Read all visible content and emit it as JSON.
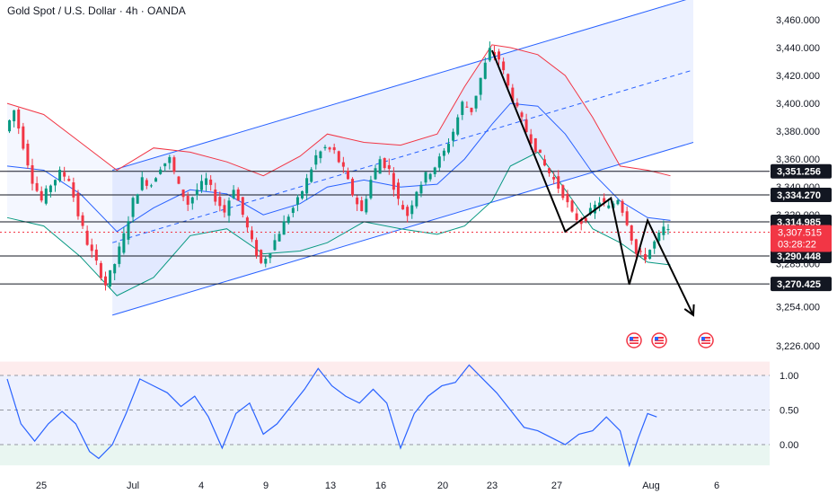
{
  "header": {
    "title": "Gold Spot / U.S. Dollar · 4h · OANDA"
  },
  "colors": {
    "up": "#089981",
    "down": "#f23645",
    "channel": "#2962ff",
    "upper_band": "#f23645",
    "basis": "#2962ff",
    "lower_band": "#089981",
    "oscillator": "#2962ff",
    "projection": "#000000"
  },
  "chart_data": [
    {
      "type": "candlestick",
      "title": "Gold Spot / U.S. Dollar · 4h · OANDA",
      "xlabel": "",
      "ylabel": "",
      "ylim": [
        3226,
        3470
      ],
      "x_tick_labels": [
        "25",
        "Jul",
        "4",
        "9",
        "13",
        "16",
        "20",
        "23",
        "27",
        "Aug",
        "6"
      ],
      "y_tick_labels": [
        "3,460.000",
        "3,440.000",
        "3,420.000",
        "3,400.000",
        "3,380.000",
        "3,360.000",
        "3,340.000",
        "3,320.000",
        "3,285.000",
        "3,254.000",
        "3,226.000"
      ],
      "y_ticks": [
        3460,
        3440,
        3420,
        3400,
        3380,
        3360,
        3340,
        3320,
        3285,
        3254,
        3226
      ],
      "price_levels": [
        {
          "label": "3,351.256",
          "value": 3351.256
        },
        {
          "label": "3,334.270",
          "value": 3334.27
        },
        {
          "label": "3,314.985",
          "value": 3314.985
        },
        {
          "label": "3,290.448",
          "value": 3290.448
        },
        {
          "label": "3,270.425",
          "value": 3270.425
        }
      ],
      "last_price": {
        "label": "3,307.515",
        "value": 3307.515,
        "countdown": "03:28:22"
      },
      "close_path": [
        [
          0,
          3380
        ],
        [
          4,
          3395
        ],
        [
          8,
          3370
        ],
        [
          12,
          3345
        ],
        [
          16,
          3330
        ],
        [
          20,
          3342
        ],
        [
          24,
          3350
        ],
        [
          28,
          3346
        ],
        [
          32,
          3320
        ],
        [
          36,
          3300
        ],
        [
          40,
          3285
        ],
        [
          44,
          3270
        ],
        [
          48,
          3285
        ],
        [
          52,
          3305
        ],
        [
          56,
          3330
        ],
        [
          60,
          3345
        ],
        [
          64,
          3342
        ],
        [
          68,
          3355
        ],
        [
          72,
          3360
        ],
        [
          76,
          3340
        ],
        [
          80,
          3328
        ],
        [
          84,
          3338
        ],
        [
          88,
          3345
        ],
        [
          92,
          3332
        ],
        [
          96,
          3322
        ],
        [
          100,
          3340
        ],
        [
          104,
          3320
        ],
        [
          108,
          3300
        ],
        [
          112,
          3285
        ],
        [
          116,
          3295
        ],
        [
          120,
          3308
        ],
        [
          124,
          3320
        ],
        [
          128,
          3330
        ],
        [
          132,
          3345
        ],
        [
          136,
          3362
        ],
        [
          140,
          3368
        ],
        [
          144,
          3365
        ],
        [
          148,
          3352
        ],
        [
          152,
          3335
        ],
        [
          156,
          3322
        ],
        [
          160,
          3345
        ],
        [
          164,
          3360
        ],
        [
          168,
          3352
        ],
        [
          172,
          3330
        ],
        [
          176,
          3320
        ],
        [
          180,
          3338
        ],
        [
          184,
          3348
        ],
        [
          188,
          3355
        ],
        [
          192,
          3365
        ],
        [
          196,
          3380
        ],
        [
          200,
          3400
        ],
        [
          204,
          3395
        ],
        [
          208,
          3418
        ],
        [
          212,
          3438
        ],
        [
          216,
          3432
        ],
        [
          220,
          3412
        ],
        [
          224,
          3395
        ],
        [
          228,
          3380
        ],
        [
          232,
          3368
        ],
        [
          236,
          3355
        ],
        [
          240,
          3345
        ],
        [
          244,
          3335
        ],
        [
          248,
          3320
        ],
        [
          252,
          3315
        ],
        [
          256,
          3322
        ],
        [
          260,
          3330
        ],
        [
          264,
          3325
        ],
        [
          268,
          3332
        ],
        [
          272,
          3315
        ],
        [
          276,
          3292
        ],
        [
          280,
          3290
        ],
        [
          284,
          3300
        ],
        [
          288,
          3310
        ],
        [
          290,
          3307.5
        ]
      ],
      "upper_band": [
        [
          0,
          3400
        ],
        [
          16,
          3392
        ],
        [
          32,
          3372
        ],
        [
          48,
          3352
        ],
        [
          64,
          3368
        ],
        [
          80,
          3365
        ],
        [
          96,
          3358
        ],
        [
          112,
          3348
        ],
        [
          128,
          3362
        ],
        [
          140,
          3378
        ],
        [
          156,
          3372
        ],
        [
          172,
          3370
        ],
        [
          188,
          3378
        ],
        [
          200,
          3412
        ],
        [
          212,
          3442
        ],
        [
          220,
          3440
        ],
        [
          232,
          3435
        ],
        [
          244,
          3420
        ],
        [
          256,
          3390
        ],
        [
          268,
          3355
        ],
        [
          280,
          3352
        ],
        [
          290,
          3348
        ]
      ],
      "basis": [
        [
          0,
          3355
        ],
        [
          16,
          3352
        ],
        [
          32,
          3335
        ],
        [
          48,
          3308
        ],
        [
          64,
          3325
        ],
        [
          80,
          3338
        ],
        [
          96,
          3335
        ],
        [
          112,
          3320
        ],
        [
          128,
          3328
        ],
        [
          140,
          3340
        ],
        [
          156,
          3345
        ],
        [
          172,
          3340
        ],
        [
          188,
          3342
        ],
        [
          200,
          3360
        ],
        [
          212,
          3385
        ],
        [
          220,
          3400
        ],
        [
          232,
          3398
        ],
        [
          244,
          3378
        ],
        [
          256,
          3350
        ],
        [
          268,
          3330
        ],
        [
          280,
          3318
        ],
        [
          290,
          3316
        ]
      ],
      "lower_band": [
        [
          0,
          3318
        ],
        [
          16,
          3312
        ],
        [
          32,
          3290
        ],
        [
          48,
          3262
        ],
        [
          64,
          3275
        ],
        [
          80,
          3305
        ],
        [
          96,
          3310
        ],
        [
          112,
          3292
        ],
        [
          128,
          3294
        ],
        [
          140,
          3300
        ],
        [
          156,
          3315
        ],
        [
          172,
          3310
        ],
        [
          188,
          3306
        ],
        [
          200,
          3312
        ],
        [
          212,
          3330
        ],
        [
          220,
          3355
        ],
        [
          232,
          3365
        ],
        [
          244,
          3338
        ],
        [
          256,
          3310
        ],
        [
          268,
          3300
        ],
        [
          280,
          3286
        ],
        [
          290,
          3284
        ]
      ],
      "channel": {
        "start": [
          46,
          3248
        ],
        "upper_start": [
          46,
          3352
        ],
        "end": [
          300,
          3372
        ],
        "upper_end": [
          300,
          3476
        ],
        "mid_offset": 52
      },
      "projection": [
        [
          212,
          3438
        ],
        [
          244,
          3308
        ],
        [
          264,
          3332
        ],
        [
          272,
          3270
        ],
        [
          280,
          3316
        ],
        [
          300,
          3248
        ]
      ],
      "oscillator": {
        "ylim": [
          -0.3,
          1.2
        ],
        "y_tick_labels": [
          "1.00",
          "0.50",
          "0.00"
        ],
        "y_ticks": [
          1.0,
          0.5,
          0.0
        ],
        "values": [
          [
            0,
            0.95
          ],
          [
            6,
            0.3
          ],
          [
            12,
            0.05
          ],
          [
            18,
            0.3
          ],
          [
            24,
            0.48
          ],
          [
            30,
            0.3
          ],
          [
            36,
            -0.1
          ],
          [
            40,
            -0.2
          ],
          [
            46,
            0.0
          ],
          [
            52,
            0.45
          ],
          [
            58,
            0.95
          ],
          [
            64,
            0.85
          ],
          [
            70,
            0.75
          ],
          [
            76,
            0.55
          ],
          [
            82,
            0.7
          ],
          [
            88,
            0.4
          ],
          [
            94,
            -0.05
          ],
          [
            100,
            0.45
          ],
          [
            106,
            0.6
          ],
          [
            112,
            0.15
          ],
          [
            118,
            0.3
          ],
          [
            124,
            0.55
          ],
          [
            130,
            0.8
          ],
          [
            136,
            1.1
          ],
          [
            142,
            0.85
          ],
          [
            148,
            0.7
          ],
          [
            154,
            0.6
          ],
          [
            160,
            0.8
          ],
          [
            166,
            0.6
          ],
          [
            172,
            -0.05
          ],
          [
            178,
            0.45
          ],
          [
            184,
            0.7
          ],
          [
            190,
            0.85
          ],
          [
            196,
            0.9
          ],
          [
            202,
            1.15
          ],
          [
            208,
            0.95
          ],
          [
            214,
            0.75
          ],
          [
            220,
            0.5
          ],
          [
            226,
            0.25
          ],
          [
            232,
            0.2
          ],
          [
            238,
            0.1
          ],
          [
            244,
            0.0
          ],
          [
            250,
            0.15
          ],
          [
            256,
            0.2
          ],
          [
            262,
            0.4
          ],
          [
            268,
            0.2
          ],
          [
            272,
            -0.3
          ],
          [
            276,
            0.1
          ],
          [
            280,
            0.45
          ],
          [
            284,
            0.4
          ]
        ]
      }
    }
  ]
}
